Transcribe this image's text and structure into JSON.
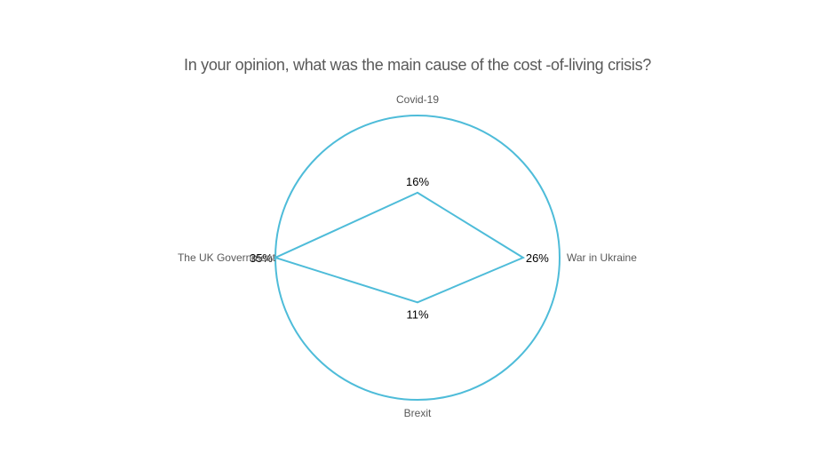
{
  "chart_data": {
    "type": "radar",
    "title": "In your opinion, what was the main cause of the cost -of-living crisis?",
    "categories": [
      "Covid-19",
      "War in Ukraine",
      "Brexit",
      "The UK Government"
    ],
    "series": [
      {
        "values": [
          16,
          26,
          11,
          35
        ],
        "data_labels": [
          "16%",
          "26%",
          "11%",
          "35%"
        ]
      }
    ],
    "value_unit": "%",
    "rlim": [
      0,
      35
    ],
    "grid": false,
    "legend": "none",
    "colors": {
      "series": "#4ebcd9",
      "outline": "#4ebcd9",
      "axis_label": "#595959",
      "title": "#595959",
      "data_label": "#000000"
    }
  }
}
